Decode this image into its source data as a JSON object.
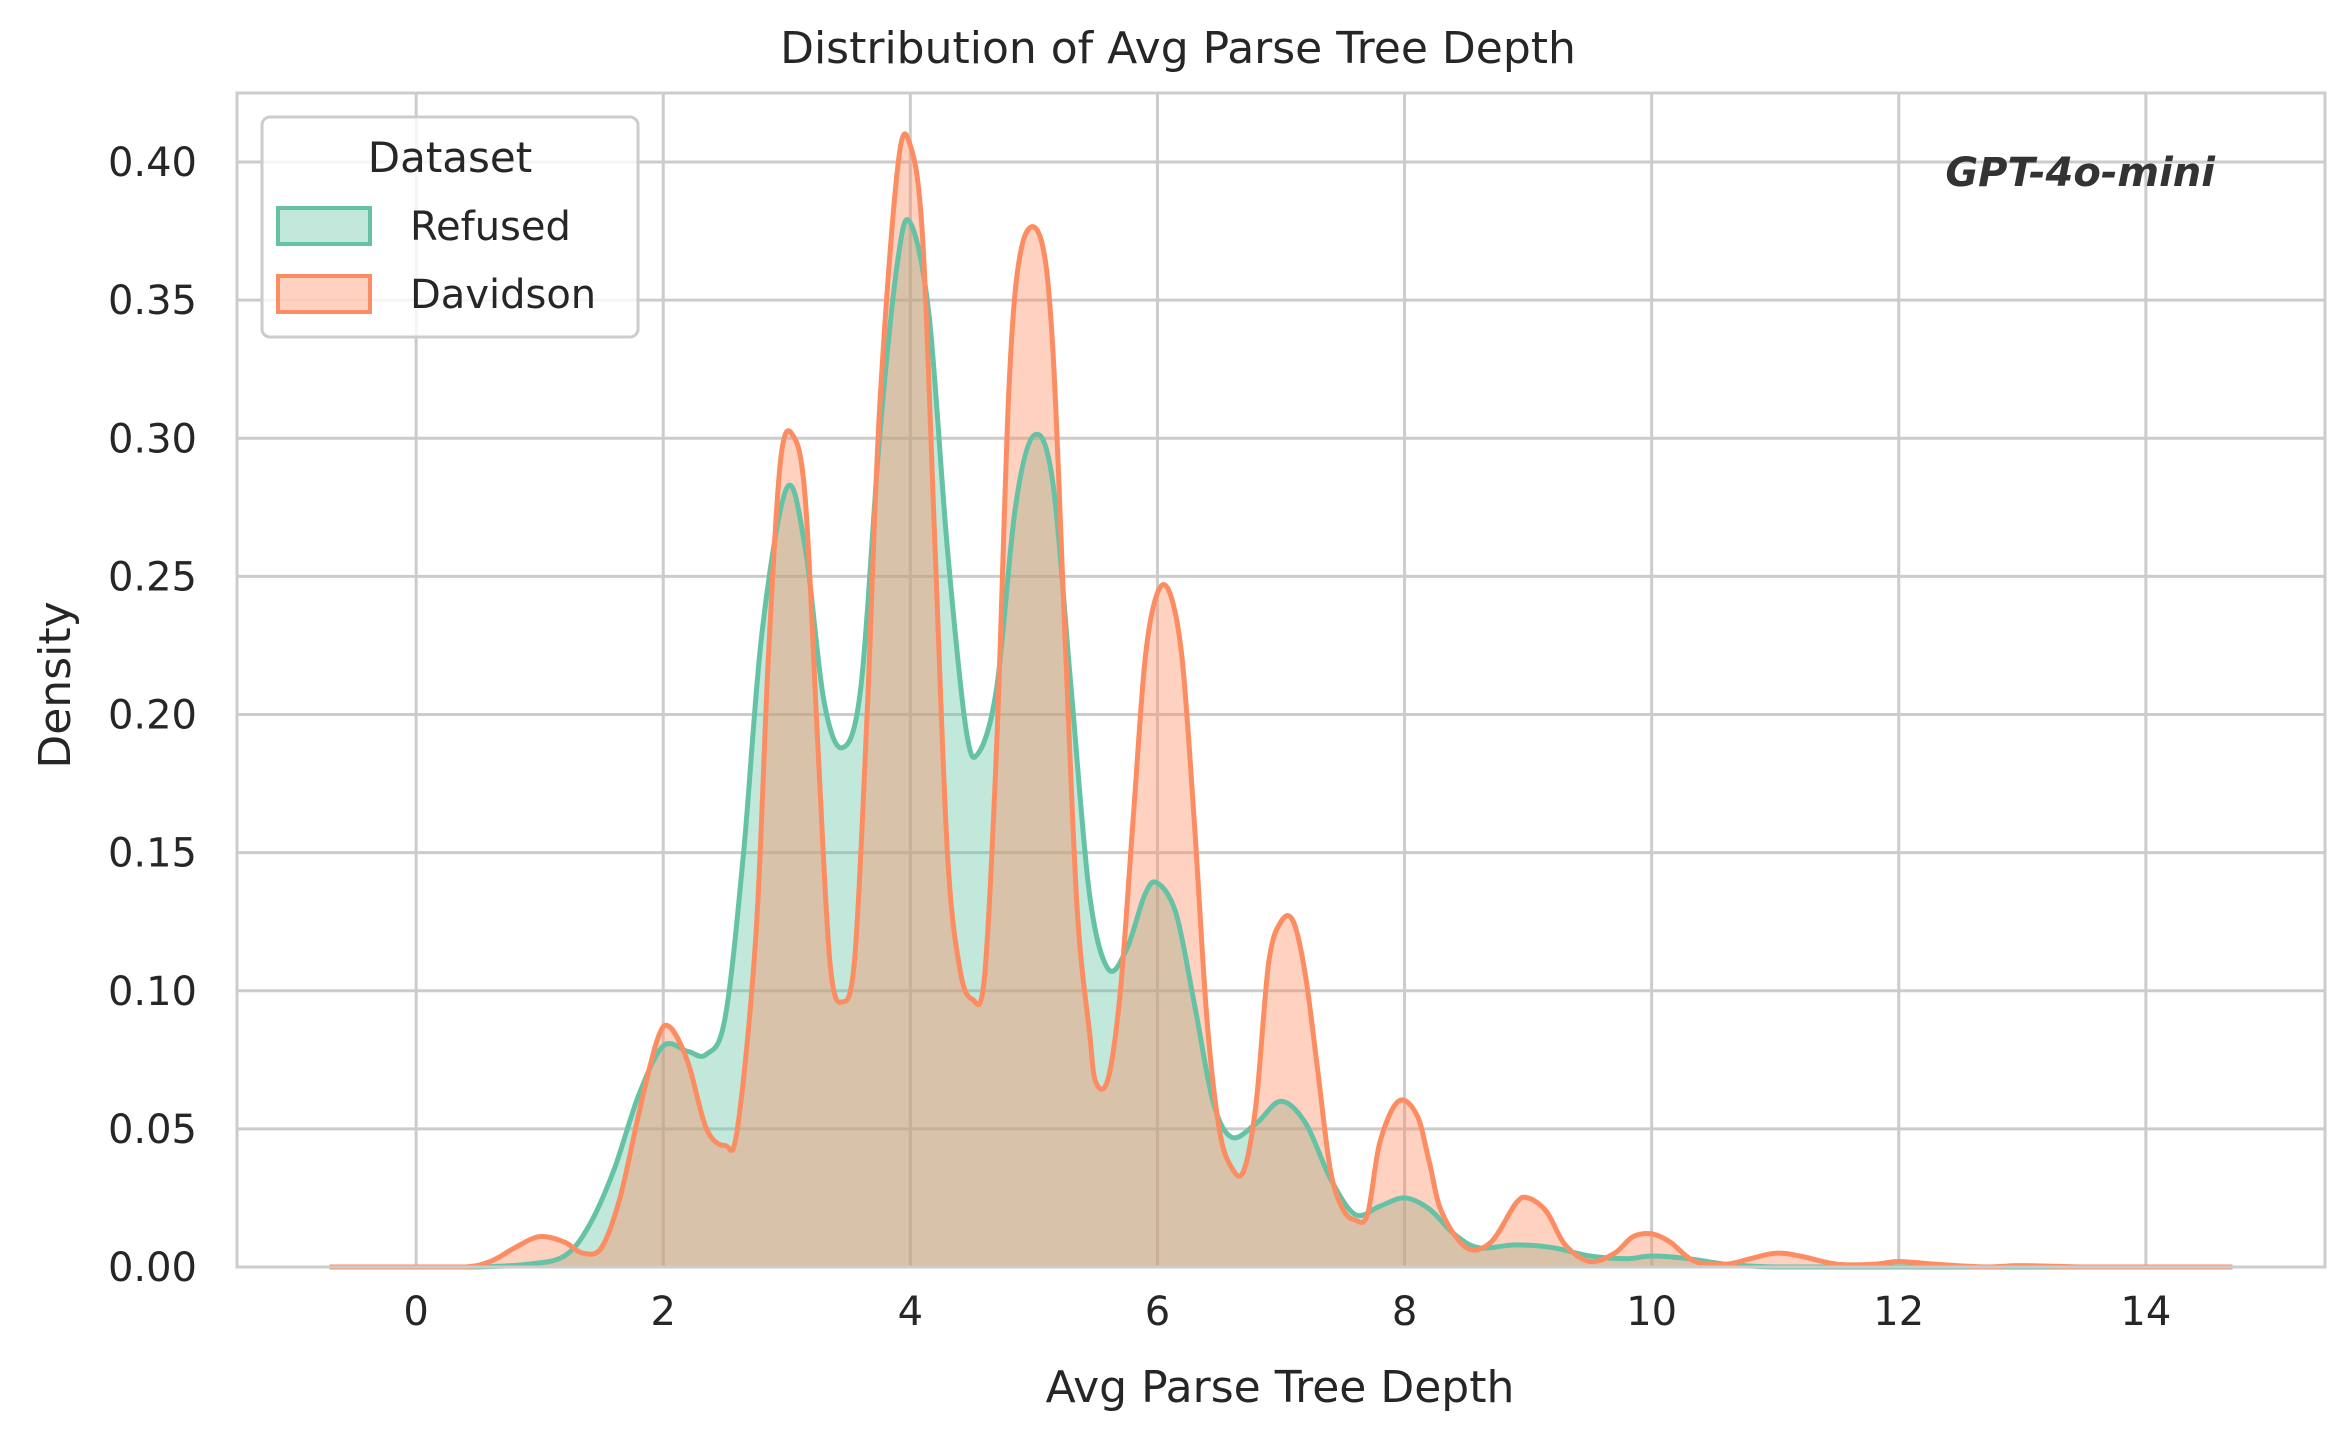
{
  "chart_data": {
    "type": "area",
    "title": "Distribution of Avg Parse Tree Depth",
    "xlabel": "Avg Parse Tree Depth",
    "ylabel": "Density",
    "xlim": [
      -1.45,
      15.45
    ],
    "ylim": [
      0,
      0.425
    ],
    "x_ticks": [
      0,
      2,
      4,
      6,
      8,
      10,
      12,
      14
    ],
    "y_ticks": [
      0.0,
      0.05,
      0.1,
      0.15,
      0.2,
      0.25,
      0.3,
      0.35,
      0.4
    ],
    "y_tick_labels": [
      "0.00",
      "0.05",
      "0.10",
      "0.15",
      "0.20",
      "0.25",
      "0.30",
      "0.35",
      "0.40"
    ],
    "grid": true,
    "legend": {
      "title": "Dataset",
      "position": "top-left"
    },
    "annotation": "GPT-4o-mini",
    "series": [
      {
        "name": "Refused",
        "color": "#66c2a5",
        "points": [
          [
            -0.7,
            0.0
          ],
          [
            0.0,
            0.0
          ],
          [
            0.5,
            0.0
          ],
          [
            0.9,
            0.001
          ],
          [
            1.2,
            0.004
          ],
          [
            1.4,
            0.015
          ],
          [
            1.6,
            0.035
          ],
          [
            1.8,
            0.062
          ],
          [
            2.0,
            0.08
          ],
          [
            2.2,
            0.078
          ],
          [
            2.35,
            0.077
          ],
          [
            2.5,
            0.09
          ],
          [
            2.65,
            0.15
          ],
          [
            2.8,
            0.23
          ],
          [
            3.0,
            0.282
          ],
          [
            3.15,
            0.26
          ],
          [
            3.3,
            0.205
          ],
          [
            3.45,
            0.188
          ],
          [
            3.6,
            0.21
          ],
          [
            3.75,
            0.3
          ],
          [
            3.9,
            0.365
          ],
          [
            4.0,
            0.378
          ],
          [
            4.15,
            0.345
          ],
          [
            4.3,
            0.26
          ],
          [
            4.45,
            0.195
          ],
          [
            4.55,
            0.186
          ],
          [
            4.7,
            0.21
          ],
          [
            4.85,
            0.275
          ],
          [
            5.0,
            0.301
          ],
          [
            5.15,
            0.285
          ],
          [
            5.3,
            0.21
          ],
          [
            5.45,
            0.135
          ],
          [
            5.6,
            0.108
          ],
          [
            5.75,
            0.115
          ],
          [
            5.9,
            0.135
          ],
          [
            6.0,
            0.139
          ],
          [
            6.15,
            0.128
          ],
          [
            6.3,
            0.095
          ],
          [
            6.45,
            0.06
          ],
          [
            6.6,
            0.047
          ],
          [
            6.8,
            0.052
          ],
          [
            7.0,
            0.06
          ],
          [
            7.2,
            0.052
          ],
          [
            7.4,
            0.032
          ],
          [
            7.6,
            0.019
          ],
          [
            7.8,
            0.022
          ],
          [
            8.0,
            0.025
          ],
          [
            8.2,
            0.021
          ],
          [
            8.4,
            0.012
          ],
          [
            8.6,
            0.007
          ],
          [
            8.9,
            0.008
          ],
          [
            9.2,
            0.007
          ],
          [
            9.5,
            0.004
          ],
          [
            9.8,
            0.003
          ],
          [
            10.0,
            0.004
          ],
          [
            10.3,
            0.003
          ],
          [
            10.6,
            0.001
          ],
          [
            11.0,
            0.0
          ],
          [
            12.0,
            0.0
          ],
          [
            13.0,
            0.0
          ],
          [
            14.0,
            0.0
          ],
          [
            14.7,
            0.0
          ]
        ]
      },
      {
        "name": "Davidson",
        "color": "#fc8d62",
        "points": [
          [
            -0.7,
            0.0
          ],
          [
            0.0,
            0.0
          ],
          [
            0.4,
            0.0
          ],
          [
            0.6,
            0.002
          ],
          [
            0.8,
            0.007
          ],
          [
            1.0,
            0.011
          ],
          [
            1.2,
            0.009
          ],
          [
            1.35,
            0.005
          ],
          [
            1.5,
            0.007
          ],
          [
            1.65,
            0.025
          ],
          [
            1.8,
            0.055
          ],
          [
            1.95,
            0.082
          ],
          [
            2.05,
            0.087
          ],
          [
            2.2,
            0.074
          ],
          [
            2.35,
            0.05
          ],
          [
            2.5,
            0.044
          ],
          [
            2.6,
            0.05
          ],
          [
            2.75,
            0.12
          ],
          [
            2.85,
            0.22
          ],
          [
            2.95,
            0.292
          ],
          [
            3.05,
            0.301
          ],
          [
            3.15,
            0.278
          ],
          [
            3.25,
            0.19
          ],
          [
            3.35,
            0.11
          ],
          [
            3.45,
            0.096
          ],
          [
            3.55,
            0.112
          ],
          [
            3.65,
            0.2
          ],
          [
            3.75,
            0.31
          ],
          [
            3.9,
            0.399
          ],
          [
            4.0,
            0.406
          ],
          [
            4.1,
            0.372
          ],
          [
            4.2,
            0.26
          ],
          [
            4.3,
            0.15
          ],
          [
            4.4,
            0.108
          ],
          [
            4.5,
            0.097
          ],
          [
            4.6,
            0.105
          ],
          [
            4.7,
            0.19
          ],
          [
            4.8,
            0.32
          ],
          [
            4.9,
            0.369
          ],
          [
            5.05,
            0.373
          ],
          [
            5.15,
            0.335
          ],
          [
            5.25,
            0.23
          ],
          [
            5.35,
            0.13
          ],
          [
            5.45,
            0.085
          ],
          [
            5.5,
            0.067
          ],
          [
            5.6,
            0.068
          ],
          [
            5.7,
            0.1
          ],
          [
            5.8,
            0.16
          ],
          [
            5.9,
            0.22
          ],
          [
            6.0,
            0.244
          ],
          [
            6.1,
            0.244
          ],
          [
            6.2,
            0.22
          ],
          [
            6.3,
            0.16
          ],
          [
            6.4,
            0.09
          ],
          [
            6.5,
            0.05
          ],
          [
            6.6,
            0.036
          ],
          [
            6.7,
            0.035
          ],
          [
            6.8,
            0.06
          ],
          [
            6.9,
            0.11
          ],
          [
            7.0,
            0.125
          ],
          [
            7.1,
            0.125
          ],
          [
            7.2,
            0.105
          ],
          [
            7.3,
            0.07
          ],
          [
            7.4,
            0.035
          ],
          [
            7.5,
            0.021
          ],
          [
            7.6,
            0.017
          ],
          [
            7.7,
            0.019
          ],
          [
            7.8,
            0.045
          ],
          [
            7.95,
            0.06
          ],
          [
            8.1,
            0.055
          ],
          [
            8.2,
            0.038
          ],
          [
            8.3,
            0.02
          ],
          [
            8.5,
            0.007
          ],
          [
            8.7,
            0.009
          ],
          [
            8.9,
            0.023
          ],
          [
            9.0,
            0.025
          ],
          [
            9.15,
            0.02
          ],
          [
            9.3,
            0.008
          ],
          [
            9.5,
            0.002
          ],
          [
            9.7,
            0.005
          ],
          [
            9.85,
            0.011
          ],
          [
            10.0,
            0.012
          ],
          [
            10.15,
            0.009
          ],
          [
            10.35,
            0.002
          ],
          [
            10.6,
            0.001
          ],
          [
            10.8,
            0.003
          ],
          [
            11.0,
            0.005
          ],
          [
            11.2,
            0.004
          ],
          [
            11.5,
            0.001
          ],
          [
            11.8,
            0.001
          ],
          [
            12.0,
            0.002
          ],
          [
            12.3,
            0.001
          ],
          [
            12.7,
            0.0
          ],
          [
            13.0,
            0.0005
          ],
          [
            13.5,
            0.0
          ],
          [
            14.0,
            0.0
          ],
          [
            14.7,
            0.0
          ]
        ]
      }
    ]
  }
}
